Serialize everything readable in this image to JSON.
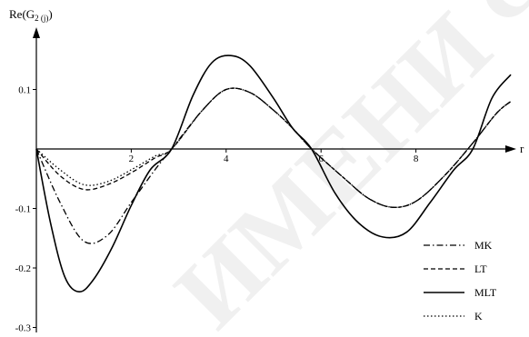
{
  "chart_data": {
    "type": "line",
    "ylabel_main": "Re(G",
    "ylabel_sub": "2 (j)",
    "ylabel_close": ")",
    "xlabel": "r",
    "xlim": [
      0,
      10.0
    ],
    "ylim": [
      -0.3,
      0.15
    ],
    "x_ticks": [
      {
        "value": 2,
        "label": "2"
      },
      {
        "value": 4,
        "label": "4"
      },
      {
        "value": 6,
        "label": "6"
      },
      {
        "value": 8,
        "label": "8"
      }
    ],
    "y_ticks": [
      {
        "value": 0.1,
        "label": "0.1"
      },
      {
        "value": -0.1,
        "label": "-0.1"
      },
      {
        "value": -0.2,
        "label": "-0.2"
      },
      {
        "value": -0.3,
        "label": "-0.3"
      }
    ],
    "legend_position": "bottom-right",
    "series": [
      {
        "name": "MK",
        "dash": "7 3 1.5 3",
        "stroke_width": 1.3,
        "x": [
          0,
          0.5,
          1.0,
          1.5,
          2.0,
          2.5,
          2.85,
          3.5,
          4.0,
          4.5,
          5.0,
          5.4,
          5.8,
          6.5,
          7.0,
          7.5,
          8.0,
          8.6,
          9.2,
          9.7,
          10.0
        ],
        "y": [
          0,
          -0.09,
          -0.155,
          -0.145,
          -0.09,
          -0.035,
          0.0,
          0.065,
          0.1,
          0.095,
          0.065,
          0.035,
          0.0,
          -0.05,
          -0.083,
          -0.098,
          -0.088,
          -0.045,
          0.01,
          0.06,
          0.08
        ]
      },
      {
        "name": "LT",
        "dash": "5 3",
        "stroke_width": 1.3,
        "x": [
          0,
          0.5,
          1.0,
          1.5,
          2.0,
          2.5,
          2.85,
          3.5,
          4.0,
          4.5,
          5.0,
          5.4,
          5.8,
          6.5,
          7.0,
          7.5,
          8.0,
          8.6,
          9.2,
          9.7,
          10.0
        ],
        "y": [
          0,
          -0.045,
          -0.068,
          -0.06,
          -0.04,
          -0.015,
          0.0,
          0.065,
          0.1,
          0.095,
          0.065,
          0.035,
          0.0,
          -0.05,
          -0.083,
          -0.098,
          -0.088,
          -0.045,
          0.01,
          0.06,
          0.08
        ]
      },
      {
        "name": "MLT",
        "dash": "",
        "stroke_width": 1.6,
        "x": [
          0,
          0.3,
          0.6,
          0.9,
          1.2,
          1.6,
          2.0,
          2.4,
          2.85,
          3.3,
          3.7,
          4.1,
          4.5,
          5.0,
          5.4,
          5.8,
          6.3,
          6.8,
          7.3,
          7.8,
          8.3,
          8.8,
          9.2,
          9.6,
          10.0
        ],
        "y": [
          0,
          -0.125,
          -0.215,
          -0.24,
          -0.22,
          -0.165,
          -0.095,
          -0.035,
          0.0,
          0.09,
          0.145,
          0.157,
          0.14,
          0.085,
          0.035,
          0.0,
          -0.075,
          -0.125,
          -0.148,
          -0.14,
          -0.09,
          -0.035,
          0.0,
          0.085,
          0.125
        ]
      },
      {
        "name": "K",
        "dash": "1.5 2.5",
        "stroke_width": 1.3,
        "x": [
          0,
          0.5,
          1.0,
          1.5,
          2.0,
          2.5,
          2.85,
          3.5,
          4.0,
          4.5,
          5.0,
          5.4,
          5.8,
          6.5,
          7.0,
          7.5,
          8.0,
          8.6,
          9.2,
          9.7,
          10.0
        ],
        "y": [
          0,
          -0.035,
          -0.06,
          -0.055,
          -0.035,
          -0.012,
          0.0,
          0.065,
          0.1,
          0.095,
          0.065,
          0.035,
          0.0,
          -0.05,
          -0.083,
          -0.098,
          -0.088,
          -0.045,
          0.01,
          0.06,
          0.08
        ]
      }
    ]
  },
  "watermark_text": "ИМЕНИ Ф"
}
